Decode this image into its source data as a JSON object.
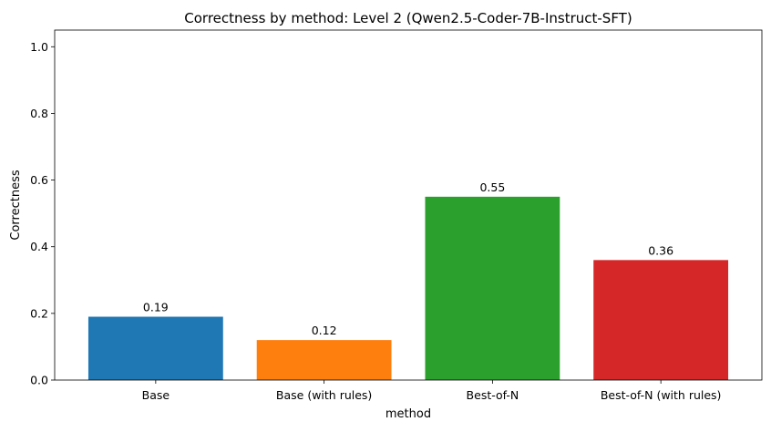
{
  "chart_data": {
    "type": "bar",
    "title": "Correctness by method: Level 2 (Qwen2.5-Coder-7B-Instruct-SFT)",
    "xlabel": "method",
    "ylabel": "Correctness",
    "categories": [
      "Base",
      "Base (with rules)",
      "Best-of-N",
      "Best-of-N (with rules)"
    ],
    "values": [
      0.19,
      0.12,
      0.55,
      0.36
    ],
    "value_labels": [
      "0.19",
      "0.12",
      "0.55",
      "0.36"
    ],
    "colors": [
      "#1f77b4",
      "#ff7f0e",
      "#2ca02c",
      "#d62728"
    ],
    "ylim": [
      0,
      1.05
    ],
    "yticks": [
      0.0,
      0.2,
      0.4,
      0.6,
      0.8,
      1.0
    ],
    "ytick_labels": [
      "0.0",
      "0.2",
      "0.4",
      "0.6",
      "0.8",
      "1.0"
    ],
    "grid": false,
    "legend": "none"
  }
}
